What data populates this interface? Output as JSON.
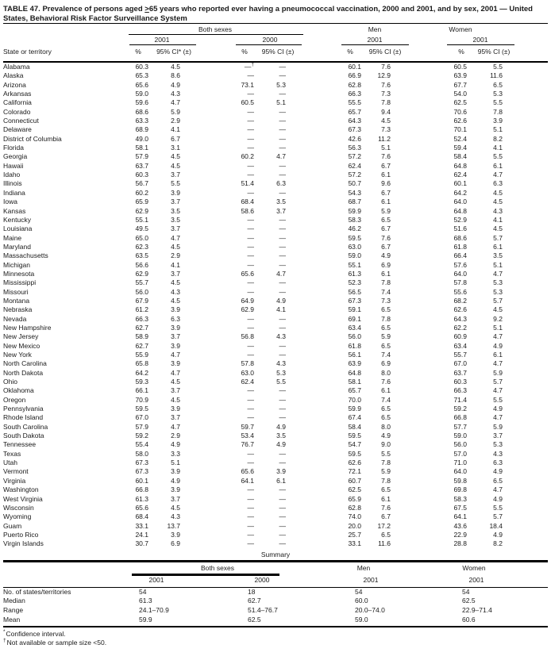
{
  "title": {
    "part1": "TABLE 47. Prevalence of persons aged ",
    "geq": ">",
    "part2": "65 years who reported ever having a pneumococcal vaccination, 2000 and 2001, and by sex, 2001 — United States, Behavioral Risk Factor Surveillance System"
  },
  "header": {
    "group_both": "Both sexes",
    "group_men": "Men",
    "group_women": "Women",
    "year_2001": "2001",
    "year_2000": "2000",
    "state_col": "State or territory",
    "pct": "%",
    "ci_star": "95% CI* (±)",
    "ci": "95% CI (±)"
  },
  "rows": [
    {
      "state": "Alabama",
      "v": [
        "60.3",
        "4.5",
        "—†",
        "—",
        "60.1",
        "7.6",
        "60.5",
        "5.5"
      ]
    },
    {
      "state": "Alaska",
      "v": [
        "65.3",
        "8.6",
        "—",
        "—",
        "66.9",
        "12.9",
        "63.9",
        "11.6"
      ]
    },
    {
      "state": "Arizona",
      "v": [
        "65.6",
        "4.9",
        "73.1",
        "5.3",
        "62.8",
        "7.6",
        "67.7",
        "6.5"
      ]
    },
    {
      "state": "Arkansas",
      "v": [
        "59.0",
        "4.3",
        "—",
        "—",
        "66.3",
        "7.3",
        "54.0",
        "5.3"
      ]
    },
    {
      "state": "California",
      "v": [
        "59.6",
        "4.7",
        "60.5",
        "5.1",
        "55.5",
        "7.8",
        "62.5",
        "5.5"
      ]
    },
    {
      "state": "Colorado",
      "v": [
        "68.6",
        "5.9",
        "—",
        "—",
        "65.7",
        "9.4",
        "70.6",
        "7.8"
      ]
    },
    {
      "state": "Connecticut",
      "v": [
        "63.3",
        "2.9",
        "—",
        "—",
        "64.3",
        "4.5",
        "62.6",
        "3.9"
      ]
    },
    {
      "state": "Delaware",
      "v": [
        "68.9",
        "4.1",
        "—",
        "—",
        "67.3",
        "7.3",
        "70.1",
        "5.1"
      ]
    },
    {
      "state": "District of Columbia",
      "v": [
        "49.0",
        "6.7",
        "—",
        "—",
        "42.6",
        "11.2",
        "52.4",
        "8.2"
      ]
    },
    {
      "state": "Florida",
      "v": [
        "58.1",
        "3.1",
        "—",
        "—",
        "56.3",
        "5.1",
        "59.4",
        "4.1"
      ]
    },
    {
      "state": "Georgia",
      "v": [
        "57.9",
        "4.5",
        "60.2",
        "4.7",
        "57.2",
        "7.6",
        "58.4",
        "5.5"
      ]
    },
    {
      "state": "Hawaii",
      "v": [
        "63.7",
        "4.5",
        "—",
        "—",
        "62.4",
        "6.7",
        "64.8",
        "6.1"
      ]
    },
    {
      "state": "Idaho",
      "v": [
        "60.3",
        "3.7",
        "—",
        "—",
        "57.2",
        "6.1",
        "62.4",
        "4.7"
      ]
    },
    {
      "state": "Illinois",
      "v": [
        "56.7",
        "5.5",
        "51.4",
        "6.3",
        "50.7",
        "9.6",
        "60.1",
        "6.3"
      ]
    },
    {
      "state": "Indiana",
      "v": [
        "60.2",
        "3.9",
        "—",
        "—",
        "54.3",
        "6.7",
        "64.2",
        "4.5"
      ]
    },
    {
      "state": "Iowa",
      "v": [
        "65.9",
        "3.7",
        "68.4",
        "3.5",
        "68.7",
        "6.1",
        "64.0",
        "4.5"
      ]
    },
    {
      "state": "Kansas",
      "v": [
        "62.9",
        "3.5",
        "58.6",
        "3.7",
        "59.9",
        "5.9",
        "64.8",
        "4.3"
      ]
    },
    {
      "state": "Kentucky",
      "v": [
        "55.1",
        "3.5",
        "—",
        "—",
        "58.3",
        "6.5",
        "52.9",
        "4.1"
      ]
    },
    {
      "state": "Louisiana",
      "v": [
        "49.5",
        "3.7",
        "—",
        "—",
        "46.2",
        "6.7",
        "51.6",
        "4.5"
      ]
    },
    {
      "state": "Maine",
      "v": [
        "65.0",
        "4.7",
        "—",
        "—",
        "59.5",
        "7.6",
        "68.6",
        "5.7"
      ]
    },
    {
      "state": "Maryland",
      "v": [
        "62.3",
        "4.5",
        "—",
        "—",
        "63.0",
        "6.7",
        "61.8",
        "6.1"
      ]
    },
    {
      "state": "Massachusetts",
      "v": [
        "63.5",
        "2.9",
        "—",
        "—",
        "59.0",
        "4.9",
        "66.4",
        "3.5"
      ]
    },
    {
      "state": "Michigan",
      "v": [
        "56.6",
        "4.1",
        "—",
        "—",
        "55.1",
        "6.9",
        "57.6",
        "5.1"
      ]
    },
    {
      "state": "Minnesota",
      "v": [
        "62.9",
        "3.7",
        "65.6",
        "4.7",
        "61.3",
        "6.1",
        "64.0",
        "4.7"
      ]
    },
    {
      "state": "Mississippi",
      "v": [
        "55.7",
        "4.5",
        "—",
        "—",
        "52.3",
        "7.8",
        "57.8",
        "5.3"
      ]
    },
    {
      "state": "Missouri",
      "v": [
        "56.0",
        "4.3",
        "—",
        "—",
        "56.5",
        "7.4",
        "55.6",
        "5.3"
      ]
    },
    {
      "state": "Montana",
      "v": [
        "67.9",
        "4.5",
        "64.9",
        "4.9",
        "67.3",
        "7.3",
        "68.2",
        "5.7"
      ]
    },
    {
      "state": "Nebraska",
      "v": [
        "61.2",
        "3.9",
        "62.9",
        "4.1",
        "59.1",
        "6.5",
        "62.6",
        "4.5"
      ]
    },
    {
      "state": "Nevada",
      "v": [
        "66.3",
        "6.3",
        "—",
        "—",
        "69.1",
        "7.8",
        "64.3",
        "9.2"
      ]
    },
    {
      "state": "New Hampshire",
      "v": [
        "62.7",
        "3.9",
        "—",
        "—",
        "63.4",
        "6.5",
        "62.2",
        "5.1"
      ]
    },
    {
      "state": "New Jersey",
      "v": [
        "58.9",
        "3.7",
        "56.8",
        "4.3",
        "56.0",
        "5.9",
        "60.9",
        "4.7"
      ]
    },
    {
      "state": "New Mexico",
      "v": [
        "62.7",
        "3.9",
        "—",
        "—",
        "61.8",
        "6.5",
        "63.4",
        "4.9"
      ]
    },
    {
      "state": "New York",
      "v": [
        "55.9",
        "4.7",
        "—",
        "—",
        "56.1",
        "7.4",
        "55.7",
        "6.1"
      ]
    },
    {
      "state": "North Carolina",
      "v": [
        "65.8",
        "3.9",
        "57.8",
        "4.3",
        "63.9",
        "6.9",
        "67.0",
        "4.7"
      ]
    },
    {
      "state": "North Dakota",
      "v": [
        "64.2",
        "4.7",
        "63.0",
        "5.3",
        "64.8",
        "8.0",
        "63.7",
        "5.9"
      ]
    },
    {
      "state": "Ohio",
      "v": [
        "59.3",
        "4.5",
        "62.4",
        "5.5",
        "58.1",
        "7.6",
        "60.3",
        "5.7"
      ]
    },
    {
      "state": "Oklahoma",
      "v": [
        "66.1",
        "3.7",
        "—",
        "—",
        "65.7",
        "6.1",
        "66.3",
        "4.7"
      ]
    },
    {
      "state": "Oregon",
      "v": [
        "70.9",
        "4.5",
        "—",
        "—",
        "70.0",
        "7.4",
        "71.4",
        "5.5"
      ]
    },
    {
      "state": "Pennsylvania",
      "v": [
        "59.5",
        "3.9",
        "—",
        "—",
        "59.9",
        "6.5",
        "59.2",
        "4.9"
      ]
    },
    {
      "state": "Rhode Island",
      "v": [
        "67.0",
        "3.7",
        "—",
        "—",
        "67.4",
        "6.5",
        "66.8",
        "4.7"
      ]
    },
    {
      "state": "South Carolina",
      "v": [
        "57.9",
        "4.7",
        "59.7",
        "4.9",
        "58.4",
        "8.0",
        "57.7",
        "5.9"
      ]
    },
    {
      "state": "South Dakota",
      "v": [
        "59.2",
        "2.9",
        "53.4",
        "3.5",
        "59.5",
        "4.9",
        "59.0",
        "3.7"
      ]
    },
    {
      "state": "Tennessee",
      "v": [
        "55.4",
        "4.9",
        "76.7",
        "4.9",
        "54.7",
        "9.0",
        "56.0",
        "5.3"
      ]
    },
    {
      "state": "Texas",
      "v": [
        "58.0",
        "3.3",
        "—",
        "—",
        "59.5",
        "5.5",
        "57.0",
        "4.3"
      ]
    },
    {
      "state": "Utah",
      "v": [
        "67.3",
        "5.1",
        "—",
        "—",
        "62.6",
        "7.8",
        "71.0",
        "6.3"
      ]
    },
    {
      "state": "Vermont",
      "v": [
        "67.3",
        "3.9",
        "65.6",
        "3.9",
        "72.1",
        "5.9",
        "64.0",
        "4.9"
      ]
    },
    {
      "state": "Virginia",
      "v": [
        "60.1",
        "4.9",
        "64.1",
        "6.1",
        "60.7",
        "7.8",
        "59.8",
        "6.5"
      ]
    },
    {
      "state": "Washington",
      "v": [
        "66.8",
        "3.9",
        "—",
        "—",
        "62.5",
        "6.5",
        "69.8",
        "4.7"
      ]
    },
    {
      "state": "West Virginia",
      "v": [
        "61.3",
        "3.7",
        "—",
        "—",
        "65.9",
        "6.1",
        "58.3",
        "4.9"
      ]
    },
    {
      "state": "Wisconsin",
      "v": [
        "65.6",
        "4.5",
        "—",
        "—",
        "62.8",
        "7.6",
        "67.5",
        "5.5"
      ]
    },
    {
      "state": "Wyoming",
      "v": [
        "68.4",
        "4.3",
        "—",
        "—",
        "74.0",
        "6.7",
        "64.1",
        "5.7"
      ]
    },
    {
      "state": "Guam",
      "v": [
        "33.1",
        "13.7",
        "—",
        "—",
        "20.0",
        "17.2",
        "43.6",
        "18.4"
      ]
    },
    {
      "state": "Puerto Rico",
      "v": [
        "24.1",
        "3.9",
        "—",
        "—",
        "25.7",
        "6.5",
        "22.9",
        "4.9"
      ]
    },
    {
      "state": "Virgin Islands",
      "v": [
        "30.7",
        "6.9",
        "—",
        "—",
        "33.1",
        "11.6",
        "28.8",
        "8.2"
      ]
    }
  ],
  "summary": {
    "title": "Summary",
    "rows": [
      {
        "label": "No. of states/territories",
        "values": [
          "54",
          "18",
          "54",
          "54"
        ]
      },
      {
        "label": "Median",
        "values": [
          "61.3",
          "62.7",
          "60.0",
          "62.5"
        ]
      },
      {
        "label": "Range",
        "values": [
          "24.1–70.9",
          "51.4–76.7",
          "20.0–74.0",
          "22.9–71.4"
        ]
      },
      {
        "label": "Mean",
        "values": [
          "59.9",
          "62.5",
          "59.0",
          "60.6"
        ]
      }
    ]
  },
  "footnotes": [
    {
      "marker": "*",
      "text": "Confidence interval."
    },
    {
      "marker": "†",
      "text": "Not available or sample size <50."
    }
  ]
}
